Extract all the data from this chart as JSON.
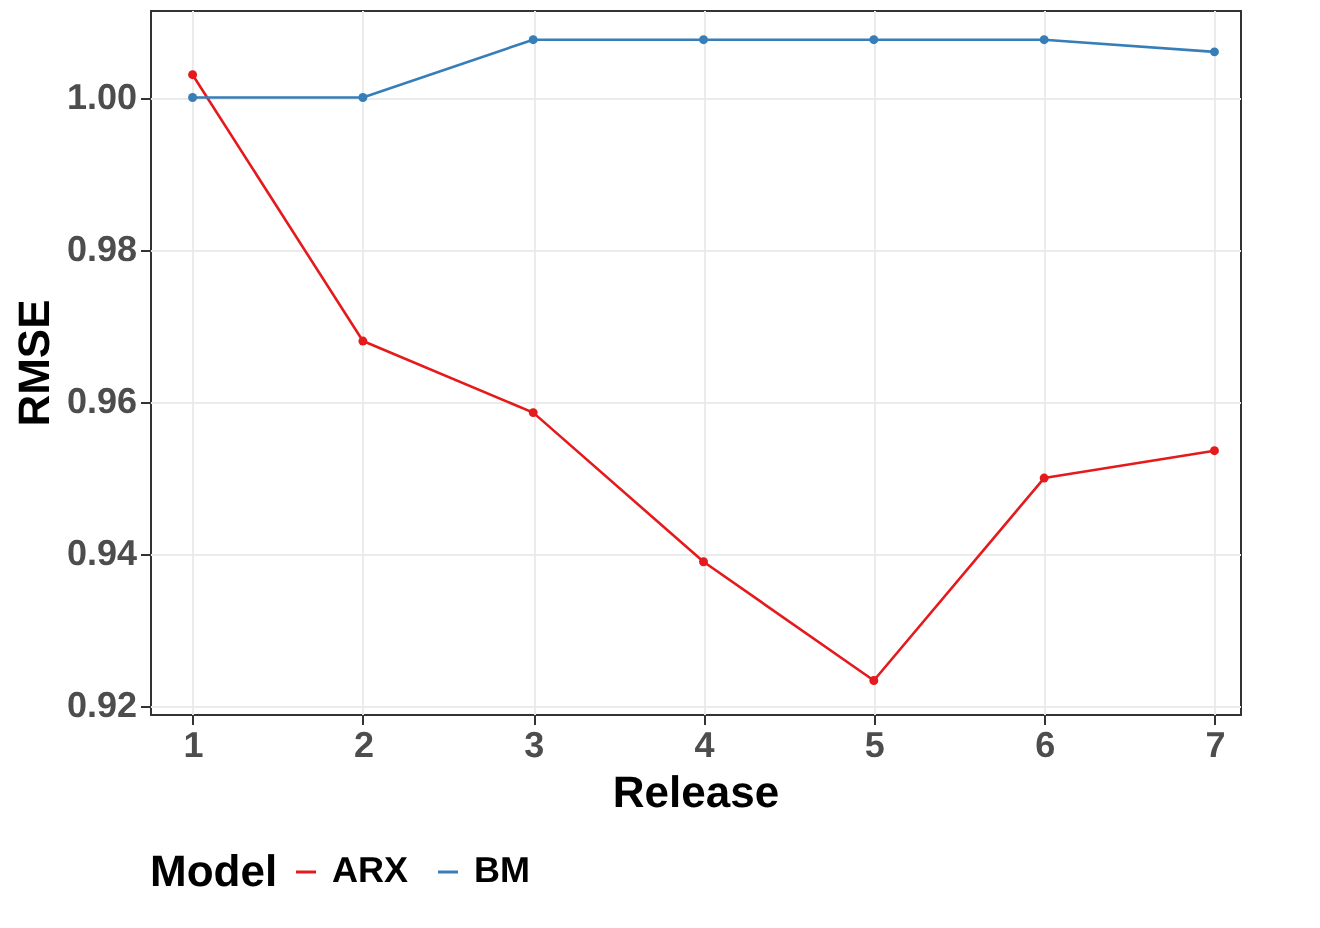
{
  "chart_data": {
    "type": "line",
    "xlabel": "Release",
    "ylabel": "RMSE",
    "legend_title": "Model",
    "x": [
      1,
      2,
      3,
      4,
      5,
      6,
      7
    ],
    "series": [
      {
        "name": "ARX",
        "color": "#e41a1c",
        "values": [
          1.003,
          0.968,
          0.9586,
          0.939,
          0.9234,
          0.95,
          0.9536
        ]
      },
      {
        "name": "BM",
        "color": "#377eb8",
        "values": [
          1.0,
          1.0,
          1.0076,
          1.0076,
          1.0076,
          1.0076,
          1.006
        ]
      }
    ],
    "xlim": [
      0.75,
      7.15
    ],
    "xticks": [
      1,
      2,
      3,
      4,
      5,
      6,
      7
    ],
    "ylim": [
      0.919,
      1.0115
    ],
    "yticks": [
      0.92,
      0.94,
      0.96,
      0.98,
      {
        "value": 1.0,
        "label": "1.00"
      }
    ],
    "grid": true,
    "legend": "bottom",
    "marker": "circle",
    "line_style": "solid"
  }
}
